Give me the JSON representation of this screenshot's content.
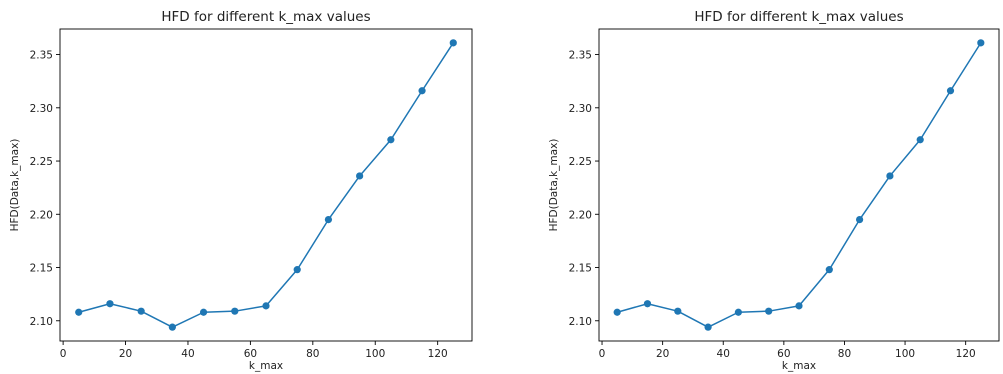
{
  "chart_data": [
    {
      "type": "line",
      "title": "HFD for different k_max values",
      "xlabel": "k_max",
      "ylabel": "HFD(Data,k_max)",
      "x": [
        5,
        15,
        25,
        35,
        45,
        55,
        65,
        75,
        85,
        95,
        105,
        115,
        125
      ],
      "series": [
        {
          "values": [
            2.108,
            2.116,
            2.109,
            2.094,
            2.108,
            2.109,
            2.114,
            2.148,
            2.195,
            2.236,
            2.27,
            2.316,
            2.361
          ],
          "color": "#1f77b4",
          "marker": "circle"
        }
      ],
      "xlim": [
        -1,
        131
      ],
      "ylim": [
        2.081,
        2.374
      ],
      "xticks": [
        0,
        20,
        40,
        60,
        80,
        100,
        120
      ],
      "yticks": [
        2.1,
        2.15,
        2.2,
        2.25,
        2.3,
        2.35
      ],
      "ytick_labels": [
        "2.10",
        "2.15",
        "2.20",
        "2.25",
        "2.30",
        "2.35"
      ],
      "grid": false
    },
    {
      "type": "line",
      "title": "HFD for different k_max values",
      "xlabel": "k_max",
      "ylabel": "HFD(Data,k_max)",
      "x": [
        5,
        15,
        25,
        35,
        45,
        55,
        65,
        75,
        85,
        95,
        105,
        115,
        125
      ],
      "series": [
        {
          "values": [
            2.108,
            2.116,
            2.109,
            2.094,
            2.108,
            2.109,
            2.114,
            2.148,
            2.195,
            2.236,
            2.27,
            2.316,
            2.361
          ],
          "color": "#1f77b4",
          "marker": "circle"
        }
      ],
      "xlim": [
        -1,
        131
      ],
      "ylim": [
        2.081,
        2.374
      ],
      "xticks": [
        0,
        20,
        40,
        60,
        80,
        100,
        120
      ],
      "yticks": [
        2.1,
        2.15,
        2.2,
        2.25,
        2.3,
        2.35
      ],
      "ytick_labels": [
        "2.10",
        "2.15",
        "2.20",
        "2.25",
        "2.30",
        "2.35"
      ],
      "grid": false
    }
  ]
}
